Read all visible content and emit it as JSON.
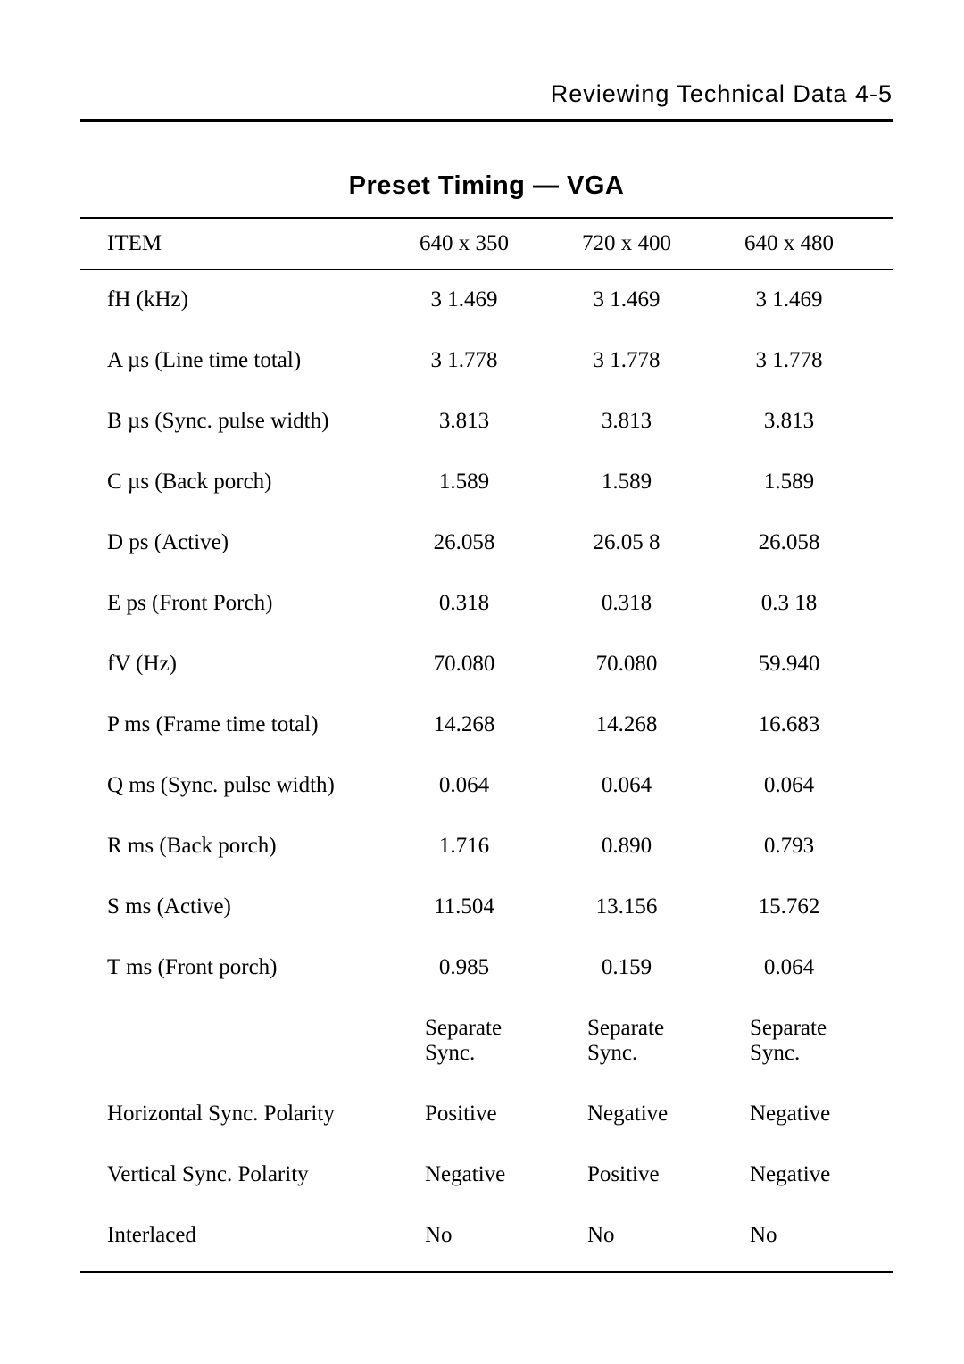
{
  "header": "Reviewing  Technical  Data  4-5",
  "title": "Preset Timing — VGA",
  "table": {
    "columns": [
      "ITEM",
      "640 x 350",
      "720 x 400",
      "640 x 480"
    ],
    "rows": [
      {
        "item": "fH (kHz)",
        "c1": "3 1.469",
        "c2": "3 1.469",
        "c3": "3 1.469",
        "align": "center"
      },
      {
        "item": "A µs (Line time total)",
        "c1": "3 1.778",
        "c2": "3 1.778",
        "c3": "3 1.778",
        "align": "center"
      },
      {
        "item": "B µs (Sync. pulse width)",
        "c1": "3.813",
        "c2": "3.813",
        "c3": "3.813",
        "align": "center"
      },
      {
        "item": "C µs (Back porch)",
        "c1": "1.589",
        "c2": "1.589",
        "c3": "1.589",
        "align": "center"
      },
      {
        "item": "D ps (Active)",
        "c1": "26.058",
        "c2": "26.05 8",
        "c3": "26.058",
        "align": "center"
      },
      {
        "item": "E ps (Front Porch)",
        "c1": "0.318",
        "c2": "0.318",
        "c3": "0.3 18",
        "align": "center"
      },
      {
        "item": "fV (Hz)",
        "c1": "70.080",
        "c2": "70.080",
        "c3": "59.940",
        "align": "center"
      },
      {
        "item": "P ms (Frame time total)",
        "c1": "14.268",
        "c2": "14.268",
        "c3": "16.683",
        "align": "center"
      },
      {
        "item": "Q ms (Sync. pulse width)",
        "c1": "0.064",
        "c2": "0.064",
        "c3": "0.064",
        "align": "center"
      },
      {
        "item": "R ms (Back porch)",
        "c1": "1.716",
        "c2": "0.890",
        "c3": "0.793",
        "align": "center"
      },
      {
        "item": "S ms (Active)",
        "c1": "11.504",
        "c2": "13.156",
        "c3": "15.762",
        "align": "center"
      },
      {
        "item": "T ms (Front porch)",
        "c1": "0.985",
        "c2": "0.159",
        "c3": "0.064",
        "align": "center"
      },
      {
        "item": "",
        "c1": "Separate\nSync.",
        "c2": "Separate\nSync.",
        "c3": "Separate\nSync.",
        "align": "left"
      },
      {
        "item": "Horizontal Sync. Polarity",
        "c1": "Positive",
        "c2": "Negative",
        "c3": "Negative",
        "align": "left"
      },
      {
        "item": "Vertical Sync. Polarity",
        "c1": "Negative",
        "c2": "Positive",
        "c3": "Negative",
        "align": "left"
      },
      {
        "item": "Interlaced",
        "c1": "No",
        "c2": "No",
        "c3": "No",
        "align": "left"
      }
    ]
  },
  "colors": {
    "text": "#000000",
    "background": "#ffffff",
    "rule": "#000000"
  },
  "fonts": {
    "header_family": "Arial",
    "header_size_pt": 20,
    "title_family": "Arial",
    "title_size_pt": 22,
    "title_weight": "bold",
    "body_family": "Times New Roman",
    "body_size_pt": 19
  }
}
